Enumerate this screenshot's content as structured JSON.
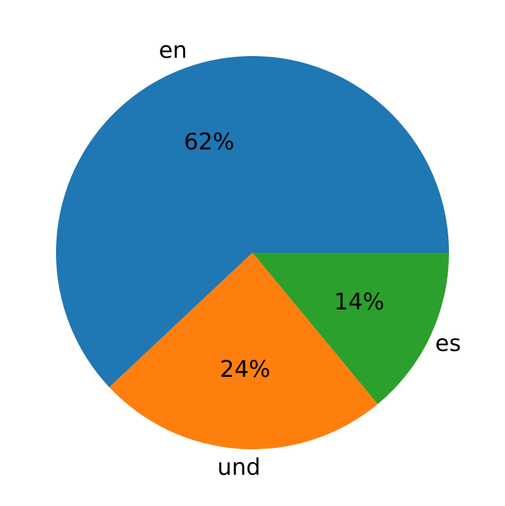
{
  "chart_data": {
    "type": "pie",
    "categories": [
      "en",
      "und",
      "es"
    ],
    "values": [
      62,
      24,
      14
    ],
    "value_labels": [
      "62%",
      "24%",
      "14%"
    ],
    "colors": [
      "#1f77b4",
      "#ff7f0e",
      "#2ca02c"
    ]
  }
}
